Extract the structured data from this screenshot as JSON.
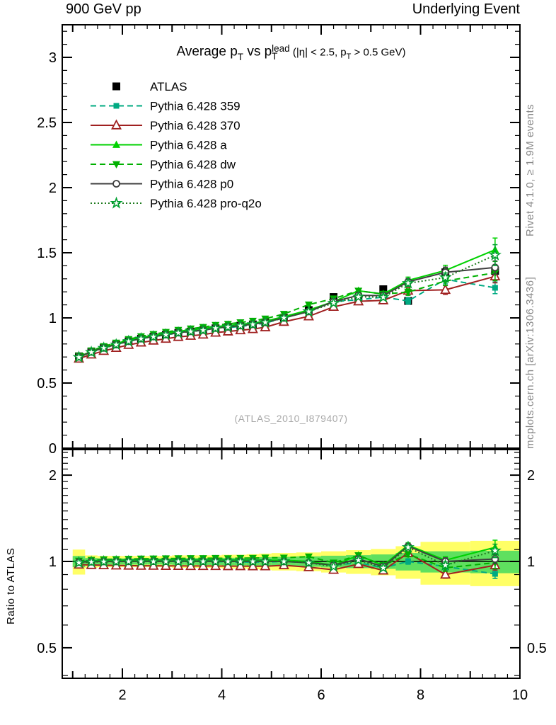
{
  "header": {
    "left": "900 GeV pp",
    "right": "Underlying Event"
  },
  "title_segments": [
    [
      "t",
      "Average p"
    ],
    [
      "sub",
      "T"
    ],
    [
      "t",
      " vs p"
    ],
    [
      "stack",
      "lead",
      "T"
    ],
    [
      "small",
      " (|η| < 2.5, p"
    ],
    [
      "smallsub",
      "T"
    ],
    [
      "small",
      " > 0.5 GeV)"
    ]
  ],
  "side_text_top": "Rivet 4.1.0, ≥ 1.9M events",
  "side_text_bottom": "mcplots.cern.ch [arXiv:1306.3436]",
  "watermark": "(ATLAS_2010_I879407)",
  "ratio_axis_label": "Ratio to ATLAS",
  "chart_data": {
    "type": "line",
    "title": "Average pT vs pT(lead)  (|eta| < 2.5, pT > 0.5 GeV)",
    "xlabel": "",
    "ylabel": "",
    "xlim": [
      0.79,
      10.0
    ],
    "main_ylim": [
      0.0,
      3.25
    ],
    "ratio_ylim": [
      0.39,
      2.45
    ],
    "ratio_log_scale": true,
    "grid": false,
    "legend_position": "top-left",
    "x_ticks_labeled": [
      2,
      4,
      6,
      8,
      10
    ],
    "x_tick_labels": [
      "2",
      "4",
      "6",
      "8",
      "10"
    ],
    "main_y_ticks": [
      0,
      0.5,
      1,
      1.5,
      2,
      2.5,
      3
    ],
    "main_y_tick_labels": [
      "0",
      "0.5",
      "1",
      "1.5",
      "2",
      "2.5",
      "3"
    ],
    "ratio_y_ticks": [
      0.5,
      1,
      2
    ],
    "ratio_y_tick_labels": [
      "0.5",
      "1",
      "2"
    ],
    "x": [
      1.125,
      1.375,
      1.625,
      1.875,
      2.125,
      2.375,
      2.625,
      2.875,
      3.125,
      3.375,
      3.625,
      3.875,
      4.125,
      4.375,
      4.625,
      4.875,
      5.25,
      5.75,
      6.25,
      6.75,
      7.25,
      7.75,
      8.5,
      9.5
    ],
    "bin_width": [
      0.25,
      0.25,
      0.25,
      0.25,
      0.25,
      0.25,
      0.25,
      0.25,
      0.25,
      0.25,
      0.25,
      0.25,
      0.25,
      0.25,
      0.25,
      0.25,
      0.5,
      0.5,
      0.5,
      0.5,
      0.5,
      0.5,
      1.0,
      1.0
    ],
    "atlas": {
      "name": "ATLAS",
      "color": "#000000",
      "marker": "square-filled",
      "values": [
        0.705,
        0.74,
        0.77,
        0.795,
        0.82,
        0.84,
        0.855,
        0.87,
        0.885,
        0.895,
        0.905,
        0.92,
        0.93,
        0.94,
        0.95,
        0.965,
        1.0,
        1.06,
        1.16,
        1.15,
        1.22,
        1.13,
        1.35,
        1.36
      ],
      "err": [
        0.008,
        0.008,
        0.008,
        0.008,
        0.008,
        0.008,
        0.008,
        0.008,
        0.008,
        0.008,
        0.008,
        0.008,
        0.009,
        0.009,
        0.01,
        0.01,
        0.01,
        0.012,
        0.015,
        0.015,
        0.02,
        0.02,
        0.03,
        0.035
      ]
    },
    "series": [
      {
        "key": "pythia-359",
        "name": "Pythia 6.428 359",
        "color": "#00AA82",
        "dash": "8,5",
        "marker": "square-filled",
        "marker_size": 8,
        "values": [
          0.705,
          0.74,
          0.77,
          0.795,
          0.82,
          0.84,
          0.855,
          0.87,
          0.885,
          0.895,
          0.905,
          0.92,
          0.925,
          0.935,
          0.945,
          0.96,
          1.0,
          1.049,
          1.125,
          1.139,
          1.159,
          1.13,
          1.296,
          1.231
        ],
        "ratio": [
          1.0,
          1.0,
          1.0,
          1.0,
          1.0,
          1.0,
          1.0,
          1.0,
          1.0,
          1.0,
          1.0,
          1.0,
          0.995,
          0.995,
          0.995,
          0.995,
          1.0,
          0.99,
          0.97,
          0.99,
          0.95,
          1.0,
          0.96,
          0.905
        ],
        "err": [
          0.004,
          0.004,
          0.004,
          0.004,
          0.004,
          0.004,
          0.004,
          0.004,
          0.004,
          0.004,
          0.004,
          0.004,
          0.005,
          0.005,
          0.006,
          0.006,
          0.007,
          0.009,
          0.012,
          0.015,
          0.02,
          0.025,
          0.035,
          0.045
        ]
      },
      {
        "key": "pythia-370",
        "name": "Pythia 6.428 370",
        "color": "#A02020",
        "dash": "",
        "marker": "triangle-open",
        "marker_size": 12,
        "values": [
          0.687,
          0.719,
          0.747,
          0.77,
          0.793,
          0.811,
          0.826,
          0.84,
          0.854,
          0.863,
          0.872,
          0.887,
          0.896,
          0.905,
          0.914,
          0.928,
          0.97,
          1.012,
          1.085,
          1.127,
          1.135,
          1.209,
          1.215,
          1.319
        ],
        "ratio": [
          0.975,
          0.972,
          0.97,
          0.968,
          0.967,
          0.966,
          0.966,
          0.965,
          0.965,
          0.964,
          0.964,
          0.964,
          0.963,
          0.963,
          0.962,
          0.962,
          0.97,
          0.955,
          0.935,
          0.98,
          0.93,
          1.07,
          0.9,
          0.97
        ],
        "err": [
          0.004,
          0.004,
          0.004,
          0.004,
          0.004,
          0.004,
          0.004,
          0.004,
          0.004,
          0.004,
          0.004,
          0.004,
          0.005,
          0.005,
          0.006,
          0.006,
          0.007,
          0.009,
          0.012,
          0.015,
          0.02,
          0.025,
          0.035,
          0.05
        ]
      },
      {
        "key": "pythia-a",
        "name": "Pythia 6.428 a",
        "color": "#00D200",
        "dash": "",
        "marker": "triangle-filled",
        "marker_size": 11,
        "values": [
          0.701,
          0.744,
          0.776,
          0.803,
          0.83,
          0.85,
          0.866,
          0.881,
          0.897,
          0.908,
          0.918,
          0.933,
          0.941,
          0.951,
          0.96,
          0.975,
          1.01,
          1.06,
          1.125,
          1.208,
          1.183,
          1.288,
          1.364,
          1.523
        ],
        "ratio": [
          0.995,
          1.005,
          1.008,
          1.01,
          1.012,
          1.012,
          1.013,
          1.013,
          1.013,
          1.014,
          1.014,
          1.014,
          1.012,
          1.012,
          1.011,
          1.01,
          1.01,
          1.0,
          0.97,
          1.05,
          0.97,
          1.14,
          1.01,
          1.12
        ],
        "err": [
          0.004,
          0.004,
          0.004,
          0.004,
          0.004,
          0.004,
          0.004,
          0.004,
          0.004,
          0.004,
          0.004,
          0.004,
          0.005,
          0.005,
          0.006,
          0.006,
          0.007,
          0.009,
          0.012,
          0.015,
          0.02,
          0.025,
          0.04,
          0.09
        ]
      },
      {
        "key": "pythia-dw",
        "name": "Pythia 6.428 dw",
        "color": "#00B000",
        "dash": "8,5",
        "marker": "triangle-down-filled",
        "marker_size": 11,
        "values": [
          0.709,
          0.749,
          0.782,
          0.809,
          0.836,
          0.858,
          0.875,
          0.891,
          0.907,
          0.918,
          0.929,
          0.945,
          0.953,
          0.965,
          0.977,
          0.994,
          1.03,
          1.102,
          1.148,
          1.208,
          1.183,
          1.198,
          1.283,
          1.346
        ],
        "ratio": [
          1.005,
          1.012,
          1.016,
          1.018,
          1.02,
          1.022,
          1.023,
          1.024,
          1.025,
          1.026,
          1.026,
          1.027,
          1.025,
          1.027,
          1.028,
          1.03,
          1.03,
          1.04,
          0.99,
          1.05,
          0.97,
          1.06,
          0.95,
          0.99
        ],
        "err": [
          0.004,
          0.004,
          0.004,
          0.004,
          0.004,
          0.004,
          0.004,
          0.004,
          0.004,
          0.004,
          0.004,
          0.004,
          0.005,
          0.005,
          0.006,
          0.006,
          0.007,
          0.009,
          0.012,
          0.015,
          0.02,
          0.025,
          0.035,
          0.06
        ]
      },
      {
        "key": "pythia-p0",
        "name": "Pythia 6.428 p0",
        "color": "#3F3F3F",
        "dash": "",
        "marker": "circle-open",
        "marker_size": 9,
        "values": [
          0.701,
          0.739,
          0.77,
          0.795,
          0.821,
          0.841,
          0.857,
          0.872,
          0.887,
          0.897,
          0.907,
          0.922,
          0.931,
          0.941,
          0.951,
          0.966,
          1.0,
          1.049,
          1.125,
          1.173,
          1.171,
          1.277,
          1.35,
          1.387
        ],
        "ratio": [
          0.995,
          0.998,
          1.0,
          1.0,
          1.001,
          1.001,
          1.002,
          1.002,
          1.002,
          1.002,
          1.002,
          1.002,
          1.001,
          1.001,
          1.001,
          1.001,
          1.0,
          0.99,
          0.97,
          1.02,
          0.96,
          1.13,
          1.0,
          1.02
        ],
        "err": [
          0.004,
          0.004,
          0.004,
          0.004,
          0.004,
          0.004,
          0.004,
          0.004,
          0.004,
          0.004,
          0.004,
          0.004,
          0.005,
          0.005,
          0.006,
          0.006,
          0.007,
          0.009,
          0.012,
          0.015,
          0.02,
          0.025,
          0.04,
          0.05
        ]
      },
      {
        "key": "pythia-pro-q2o",
        "name": "Pythia 6.428 pro-q2o",
        "color": "#1E7A1E",
        "marker_color": "#00A030",
        "dash": "2,3",
        "marker": "star-open",
        "marker_size": 13,
        "values": [
          0.698,
          0.736,
          0.768,
          0.794,
          0.82,
          0.84,
          0.855,
          0.87,
          0.885,
          0.895,
          0.905,
          0.92,
          0.93,
          0.94,
          0.95,
          0.965,
          1.0,
          1.049,
          1.114,
          1.162,
          1.159,
          1.266,
          1.31,
          1.482
        ],
        "ratio": [
          0.99,
          0.995,
          0.998,
          0.999,
          1.0,
          1.0,
          1.0,
          1.0,
          1.0,
          1.0,
          1.0,
          1.0,
          1.0,
          1.0,
          1.0,
          1.0,
          1.0,
          0.99,
          0.96,
          1.01,
          0.95,
          1.12,
          0.97,
          1.09
        ],
        "err": [
          0.004,
          0.004,
          0.004,
          0.004,
          0.004,
          0.004,
          0.004,
          0.004,
          0.004,
          0.004,
          0.004,
          0.004,
          0.005,
          0.005,
          0.006,
          0.006,
          0.007,
          0.009,
          0.012,
          0.015,
          0.02,
          0.025,
          0.035,
          0.08
        ]
      }
    ],
    "bands": {
      "yellow_color": "#FFFF66",
      "green_color": "#5FE05F",
      "yellow_halfwidth": [
        0.1,
        0.05,
        0.045,
        0.045,
        0.045,
        0.045,
        0.045,
        0.045,
        0.05,
        0.05,
        0.05,
        0.05,
        0.055,
        0.055,
        0.06,
        0.065,
        0.07,
        0.075,
        0.085,
        0.095,
        0.105,
        0.13,
        0.17,
        0.18
      ],
      "green_halfwidth": [
        0.045,
        0.028,
        0.025,
        0.025,
        0.025,
        0.025,
        0.025,
        0.025,
        0.027,
        0.027,
        0.028,
        0.028,
        0.03,
        0.03,
        0.032,
        0.035,
        0.038,
        0.042,
        0.047,
        0.052,
        0.058,
        0.07,
        0.085,
        0.09
      ]
    }
  }
}
